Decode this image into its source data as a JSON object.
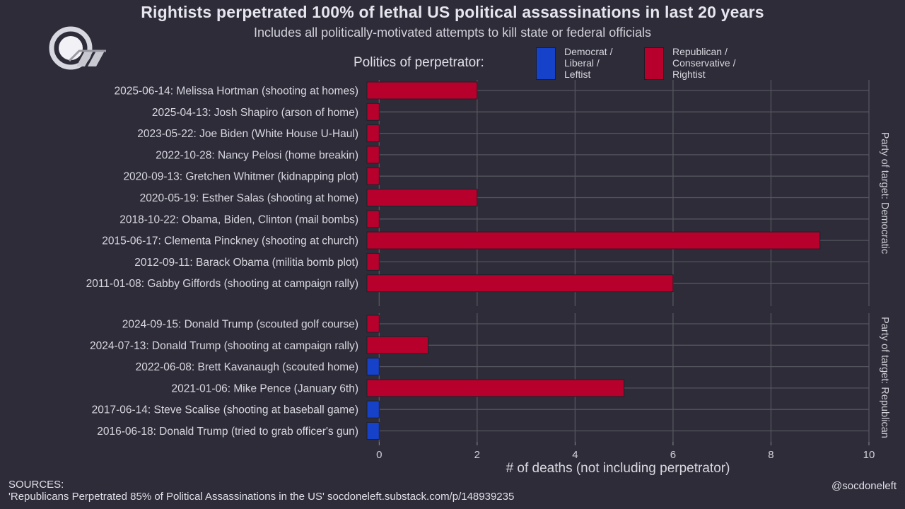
{
  "title": "Rightists perpetrated 100% of lethal US political assassinations in last 20 years",
  "subtitle": "Includes all politically-motivated attempts to kill state or federal officials",
  "legend": {
    "title": "Politics of perpetrator:",
    "items": [
      {
        "label": "Democrat /\nLiberal /\nLeftist",
        "color": "#1641c9"
      },
      {
        "label": "Republican /\nConservative /\nRightist",
        "color": "#b8002c"
      }
    ]
  },
  "sources": {
    "label": "SOURCES:",
    "text": "'Republicans Perpetrated 85% of Political Assassinations in the US' socdoneleft.substack.com/p/148939235"
  },
  "handle": "@socdoneleft",
  "chart_data": {
    "type": "bar",
    "orientation": "horizontal",
    "xlabel": "# of deaths (not including perpetrator)",
    "xlim": [
      -0.25,
      10
    ],
    "xticks": [
      0,
      2,
      4,
      6,
      8,
      10
    ],
    "colors": {
      "Democrat": "#1641c9",
      "Republican": "#b8002c"
    },
    "panels": [
      {
        "strip_label": "Party of target: Democratic",
        "rows": [
          {
            "label": "2025-06-14: Melissa Hortman (shooting at homes)",
            "value": 2,
            "perpetrator": "Republican"
          },
          {
            "label": "2025-04-13: Josh Shapiro (arson of home)",
            "value": 0,
            "perpetrator": "Republican"
          },
          {
            "label": "2023-05-22: Joe Biden (White House U-Haul)",
            "value": 0,
            "perpetrator": "Republican"
          },
          {
            "label": "2022-10-28: Nancy Pelosi (home breakin)",
            "value": 0,
            "perpetrator": "Republican"
          },
          {
            "label": "2020-09-13: Gretchen Whitmer (kidnapping plot)",
            "value": 0,
            "perpetrator": "Republican"
          },
          {
            "label": "2020-05-19: Esther Salas (shooting at home)",
            "value": 2,
            "perpetrator": "Republican"
          },
          {
            "label": "2018-10-22: Obama, Biden, Clinton (mail bombs)",
            "value": 0,
            "perpetrator": "Republican"
          },
          {
            "label": "2015-06-17: Clementa Pinckney (shooting at church)",
            "value": 9,
            "perpetrator": "Republican"
          },
          {
            "label": "2012-09-11: Barack Obama (militia bomb plot)",
            "value": 0,
            "perpetrator": "Republican"
          },
          {
            "label": "2011-01-08: Gabby Giffords (shooting at campaign rally)",
            "value": 6,
            "perpetrator": "Republican"
          }
        ]
      },
      {
        "strip_label": "Party of target: Republican",
        "rows": [
          {
            "label": "2024-09-15: Donald Trump (scouted golf course)",
            "value": 0,
            "perpetrator": "Republican"
          },
          {
            "label": "2024-07-13: Donald Trump (shooting at campaign rally)",
            "value": 1,
            "perpetrator": "Republican"
          },
          {
            "label": "2022-06-08: Brett Kavanaugh (scouted home)",
            "value": 0,
            "perpetrator": "Democrat"
          },
          {
            "label": "2021-01-06: Mike Pence (January 6th)",
            "value": 5,
            "perpetrator": "Republican"
          },
          {
            "label": "2017-06-14: Steve Scalise (shooting at baseball game)",
            "value": 0,
            "perpetrator": "Democrat"
          },
          {
            "label": "2016-06-18: Donald Trump (tried to grab officer's gun)",
            "value": 0,
            "perpetrator": "Democrat"
          }
        ]
      }
    ]
  }
}
